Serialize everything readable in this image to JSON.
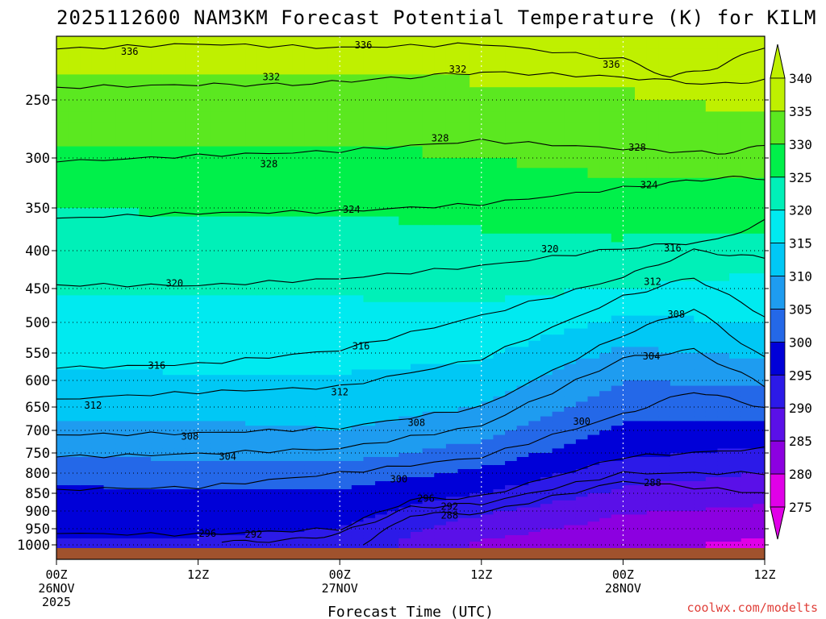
{
  "colors": {
    "terrain": "#a0522d",
    "credit": "#e0403a"
  },
  "chart_data": {
    "type": "heatmap",
    "title": "2025112600 NAM3KM Forecast Potential Temperature (K) for KILM",
    "xlabel": "Forecast Time (UTC)",
    "ylabel": "",
    "credit": "coolwx.com/modelts",
    "x_range_hours": [
      0,
      60
    ],
    "y_range_hPa": [
      1000,
      200
    ],
    "x_ticks": [
      {
        "hour": 0,
        "lines": [
          "00Z",
          "26NOV",
          "2025"
        ]
      },
      {
        "hour": 12,
        "lines": [
          "12Z"
        ]
      },
      {
        "hour": 24,
        "lines": [
          "00Z",
          "27NOV"
        ]
      },
      {
        "hour": 36,
        "lines": [
          "12Z"
        ]
      },
      {
        "hour": 48,
        "lines": [
          "00Z",
          "28NOV"
        ]
      },
      {
        "hour": 60,
        "lines": [
          "12Z"
        ]
      }
    ],
    "y_ticks": [
      250,
      300,
      350,
      400,
      450,
      500,
      550,
      600,
      650,
      700,
      750,
      800,
      850,
      900,
      950,
      1000
    ],
    "colorbar": {
      "ticks": [
        340,
        335,
        330,
        325,
        320,
        315,
        310,
        305,
        300,
        295,
        290,
        285,
        280,
        275
      ],
      "bands": [
        {
          "from": 335,
          "to": 340,
          "color": "#bff000"
        },
        {
          "from": 330,
          "to": 335,
          "color": "#5be820"
        },
        {
          "from": 325,
          "to": 330,
          "color": "#00f04a"
        },
        {
          "from": 320,
          "to": 325,
          "color": "#00f0b8"
        },
        {
          "from": 315,
          "to": 320,
          "color": "#00eaf0"
        },
        {
          "from": 310,
          "to": 315,
          "color": "#00c8f5"
        },
        {
          "from": 305,
          "to": 310,
          "color": "#1e9cf0"
        },
        {
          "from": 300,
          "to": 305,
          "color": "#2468e8"
        },
        {
          "from": 295,
          "to": 300,
          "color": "#0000d8"
        },
        {
          "from": 290,
          "to": 295,
          "color": "#2c1ae8"
        },
        {
          "from": 285,
          "to": 290,
          "color": "#5a10e8"
        },
        {
          "from": 280,
          "to": 285,
          "color": "#8c00e0"
        },
        {
          "from": 275,
          "to": 280,
          "color": "#e000e8"
        }
      ]
    },
    "fill_theta_profile": {
      "levels_hPa": [
        200,
        250,
        300,
        350,
        400,
        450,
        500,
        550,
        600,
        650,
        700,
        750,
        800,
        850,
        900,
        950,
        1000
      ],
      "series": [
        {
          "hour": 0,
          "theta": [
            336.5,
            333.5,
            329,
            325,
            322,
            320.5,
            318.5,
            316.5,
            314,
            312,
            309,
            306,
            302,
            299,
            297,
            295.5,
            294.5
          ]
        },
        {
          "hour": 12,
          "theta": [
            337,
            333,
            329,
            325.5,
            322.5,
            320.5,
            318.5,
            316.5,
            314.5,
            312.5,
            308.5,
            306,
            303,
            299,
            297,
            295.5,
            294.5
          ]
        },
        {
          "hour": 24,
          "theta": [
            337,
            333.5,
            329,
            325.5,
            322.5,
            320.5,
            318.5,
            316.5,
            314.5,
            312,
            310,
            307,
            303,
            299,
            297.5,
            295,
            293.5
          ]
        },
        {
          "hour": 36,
          "theta": [
            337.5,
            334,
            330,
            326.5,
            323.5,
            321,
            319,
            316,
            313,
            310,
            307,
            303,
            299,
            295,
            291,
            287,
            284
          ]
        },
        {
          "hour": 48,
          "theta": [
            338,
            334.5,
            331.5,
            327.5,
            324,
            320,
            314,
            309,
            305,
            302,
            299,
            296,
            292,
            289,
            285.5,
            283,
            281
          ]
        },
        {
          "hour": 60,
          "theta": [
            339,
            336,
            332,
            328,
            322,
            318.5,
            315,
            311,
            306,
            302,
            298,
            294,
            290,
            287,
            284,
            281,
            279
          ]
        }
      ]
    },
    "isentropes": [
      {
        "value": 336,
        "label": "336",
        "points": [
          [
            0,
            210
          ],
          [
            12,
            206
          ],
          [
            24,
            209
          ],
          [
            36,
            206
          ],
          [
            48,
            218
          ],
          [
            52,
            232
          ],
          [
            56,
            224
          ],
          [
            60,
            208
          ]
        ]
      },
      {
        "value": 332,
        "label": "332",
        "points": [
          [
            0,
            240
          ],
          [
            12,
            238
          ],
          [
            20,
            238
          ],
          [
            30,
            232
          ],
          [
            36,
            228
          ],
          [
            48,
            232
          ],
          [
            56,
            238
          ],
          [
            60,
            234
          ]
        ]
      },
      {
        "value": 328,
        "label": "328",
        "points": [
          [
            0,
            304
          ],
          [
            12,
            298
          ],
          [
            24,
            294
          ],
          [
            36,
            285
          ],
          [
            48,
            292
          ],
          [
            56,
            296
          ],
          [
            60,
            290
          ]
        ]
      },
      {
        "value": 324,
        "label": "324",
        "points": [
          [
            0,
            362
          ],
          [
            12,
            356
          ],
          [
            24,
            354
          ],
          [
            36,
            346
          ],
          [
            48,
            330
          ],
          [
            56,
            320
          ],
          [
            60,
            320
          ]
        ]
      },
      {
        "value": 320,
        "label": "320",
        "points": [
          [
            0,
            445
          ],
          [
            12,
            446
          ],
          [
            24,
            437
          ],
          [
            36,
            420
          ],
          [
            48,
            397
          ],
          [
            56,
            388
          ],
          [
            60,
            365
          ]
        ]
      },
      {
        "value": 316,
        "label": "316",
        "points": [
          [
            0,
            578
          ],
          [
            12,
            570
          ],
          [
            24,
            545
          ],
          [
            36,
            490
          ],
          [
            48,
            435
          ],
          [
            54,
            400
          ],
          [
            60,
            410
          ]
        ]
      },
      {
        "value": 312,
        "label": "312",
        "points": [
          [
            0,
            635
          ],
          [
            12,
            622
          ],
          [
            24,
            612
          ],
          [
            36,
            560
          ],
          [
            48,
            462
          ],
          [
            54,
            435
          ],
          [
            60,
            490
          ]
        ]
      },
      {
        "value": 308,
        "label": "308",
        "points": [
          [
            0,
            710
          ],
          [
            12,
            706
          ],
          [
            24,
            695
          ],
          [
            36,
            650
          ],
          [
            48,
            520
          ],
          [
            54,
            480
          ],
          [
            60,
            560
          ]
        ]
      },
      {
        "value": 304,
        "label": "304",
        "points": [
          [
            0,
            760
          ],
          [
            12,
            752
          ],
          [
            24,
            740
          ],
          [
            36,
            690
          ],
          [
            48,
            560
          ],
          [
            54,
            545
          ],
          [
            60,
            610
          ]
        ]
      },
      {
        "value": 300,
        "label": "300",
        "points": [
          [
            0,
            840
          ],
          [
            12,
            835
          ],
          [
            24,
            800
          ],
          [
            36,
            760
          ],
          [
            48,
            665
          ],
          [
            54,
            620
          ],
          [
            60,
            650
          ]
        ]
      },
      {
        "value": 296,
        "label": "296",
        "points": [
          [
            0,
            965
          ],
          [
            12,
            968
          ],
          [
            24,
            950
          ],
          [
            30,
            868
          ],
          [
            36,
            860
          ],
          [
            48,
            760
          ],
          [
            60,
            740
          ]
        ]
      },
      {
        "value": 292,
        "label": "292",
        "points": [
          [
            14,
            992
          ],
          [
            20,
            985
          ],
          [
            24,
            965
          ],
          [
            30,
            890
          ],
          [
            36,
            880
          ],
          [
            48,
            800
          ],
          [
            60,
            800
          ]
        ]
      },
      {
        "value": 288,
        "label": "288",
        "points": [
          [
            26,
            1000
          ],
          [
            30,
            910
          ],
          [
            36,
            905
          ],
          [
            48,
            820
          ],
          [
            60,
            850
          ]
        ]
      }
    ],
    "contour_labels": [
      {
        "value": "336",
        "hour": 6.2,
        "hPa": 212
      },
      {
        "value": "336",
        "hour": 26.0,
        "hPa": 207
      },
      {
        "value": "336",
        "hour": 47.0,
        "hPa": 222
      },
      {
        "value": "332",
        "hour": 18.2,
        "hPa": 232
      },
      {
        "value": "332",
        "hour": 34.0,
        "hPa": 226
      },
      {
        "value": "328",
        "hour": 32.5,
        "hPa": 283
      },
      {
        "value": "328",
        "hour": 18.0,
        "hPa": 306
      },
      {
        "value": "328",
        "hour": 49.2,
        "hPa": 291
      },
      {
        "value": "324",
        "hour": 25.0,
        "hPa": 352
      },
      {
        "value": "324",
        "hour": 50.2,
        "hPa": 327
      },
      {
        "value": "320",
        "hour": 10.0,
        "hPa": 443
      },
      {
        "value": "320",
        "hour": 41.8,
        "hPa": 398
      },
      {
        "value": "316",
        "hour": 52.2,
        "hPa": 397
      },
      {
        "value": "316",
        "hour": 25.8,
        "hPa": 539
      },
      {
        "value": "316",
        "hour": 8.5,
        "hPa": 573
      },
      {
        "value": "312",
        "hour": 50.5,
        "hPa": 441
      },
      {
        "value": "312",
        "hour": 24.0,
        "hPa": 622
      },
      {
        "value": "312",
        "hour": 3.1,
        "hPa": 647
      },
      {
        "value": "308",
        "hour": 52.5,
        "hPa": 488
      },
      {
        "value": "308",
        "hour": 30.5,
        "hPa": 684
      },
      {
        "value": "308",
        "hour": 11.3,
        "hPa": 713
      },
      {
        "value": "304",
        "hour": 50.4,
        "hPa": 556
      },
      {
        "value": "304",
        "hour": 14.5,
        "hPa": 759
      },
      {
        "value": "300",
        "hour": 44.5,
        "hPa": 681
      },
      {
        "value": "300",
        "hour": 29.0,
        "hPa": 815
      },
      {
        "value": "296",
        "hour": 31.3,
        "hPa": 865
      },
      {
        "value": "296",
        "hour": 12.8,
        "hPa": 965
      },
      {
        "value": "292",
        "hour": 33.3,
        "hPa": 887
      },
      {
        "value": "292",
        "hour": 16.7,
        "hPa": 967
      },
      {
        "value": "288",
        "hour": 33.3,
        "hPa": 912
      },
      {
        "value": "288",
        "hour": 50.5,
        "hPa": 824
      }
    ]
  }
}
